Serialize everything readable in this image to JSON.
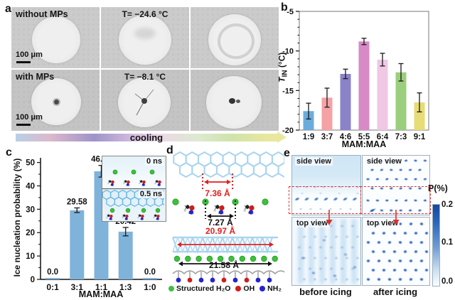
{
  "panels": {
    "a": {
      "letter": "a",
      "row1": {
        "tag": "without MPs",
        "temp": "T= −24.6 °C",
        "scalebar": "100 μm"
      },
      "row2": {
        "tag": "with MPs",
        "temp": "T= −8.1 °C",
        "scalebar": "100 μm"
      },
      "cooling_label": "cooling"
    },
    "b": {
      "letter": "b"
    },
    "c": {
      "letter": "c"
    },
    "d": {
      "letter": "d",
      "distances": [
        "7.36 Å",
        "7.27 Å",
        "20.97 Å",
        "21.58 Å"
      ],
      "legend": [
        {
          "label": "Structured H₂O",
          "color": "#3cc13c"
        },
        {
          "label": "OH",
          "color": "#cf1d1d"
        },
        {
          "label": "NH₂",
          "color": "#2424cc"
        }
      ]
    },
    "e": {
      "letter": "e",
      "maps": [
        {
          "label": "side view"
        },
        {
          "label": "side view"
        },
        {
          "label": "top view"
        },
        {
          "label": "top view"
        }
      ],
      "bottom_labels": [
        "before icing",
        "after icing"
      ],
      "colorbar": {
        "title": "P(%)",
        "ticks": [
          "0.2",
          "0.1",
          "0.0"
        ]
      }
    }
  },
  "chart_data": [
    {
      "id": "b",
      "type": "bar",
      "categories": [
        "1:9",
        "3:7",
        "4:6",
        "5:5",
        "6:4",
        "7:3",
        "9:1"
      ],
      "values": [
        -17.6,
        -15.9,
        -12.9,
        -8.8,
        -11.1,
        -12.7,
        -16.5
      ],
      "errors": [
        1.0,
        1.2,
        0.6,
        0.4,
        0.8,
        1.1,
        1.2
      ],
      "colors": [
        "#6CACDC",
        "#F4A2A6",
        "#8A83C9",
        "#D78AC6",
        "#F0C7E5",
        "#9BCE7D",
        "#E7DC76"
      ],
      "title": "",
      "xlabel": "MAM:MAA",
      "ylabel": "T_IN (°C)",
      "ylabel_t": "T",
      "ylabel_sub": "IN",
      "ylabel_unit": " (°C)",
      "ylim": [
        -20,
        -5
      ],
      "yticks": [
        -5,
        -10,
        -15,
        -20
      ],
      "grid": false
    },
    {
      "id": "c",
      "type": "bar",
      "categories": [
        "0:1",
        "3:1",
        "1:1",
        "1:3",
        "1:0"
      ],
      "values": [
        0.0,
        29.58,
        46.25,
        20.42,
        0.0
      ],
      "value_labels": [
        "0.0",
        "29.58",
        "46.25",
        "20.42",
        "0.0"
      ],
      "errors": [
        0,
        1.0,
        2.5,
        1.8,
        0
      ],
      "bar_color": "#7FB3DA",
      "title": "",
      "xlabel": "MAM:MAA",
      "ylabel": "Ice nucleation probability (%)",
      "ylim": [
        0,
        52
      ],
      "yticks": [
        0,
        10,
        20,
        30,
        40,
        50
      ],
      "grid": false,
      "inset_labels": [
        "0 ns",
        "0.5 ns"
      ]
    }
  ]
}
